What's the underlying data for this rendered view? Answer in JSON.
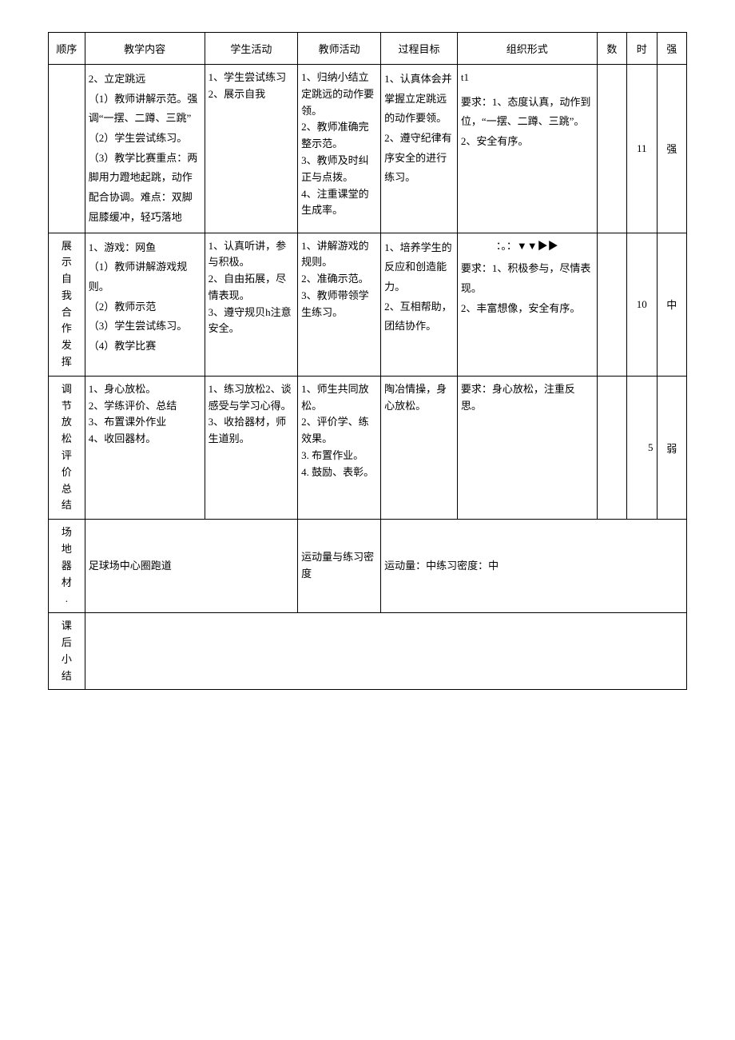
{
  "headers": {
    "seq": "顺序",
    "content": "教学内容",
    "student": "学生活动",
    "teacher": "教师活动",
    "goal": "过程目标",
    "org": "组织形式",
    "num": "数",
    "time": "时",
    "int": "强"
  },
  "row1": {
    "content": "2、立定跳远\n（1）教师讲解示范。强调“一摆、二蹲、三跳”\n（2）学生尝试练习。\n（3）教学比赛重点：两脚用力蹬地起跳，动作配合协调。难点：双脚屈膝缓冲，轻巧落地",
    "student": "1、学生尝试练习\n2、展示自我",
    "teacher": "1、归纳小结立定跳远的动作要领。\n2、教师准确完整示范。\n3、教师及时纠正与点拨。\n4、注重课堂的生成率。",
    "goal": "1、认真体会并掌握立定跳远的动作要领。\n2、遵守纪律有序安全的进行练习。",
    "org_marker": "t1",
    "org_req": "要求：1、态度认真，动作到位，“一摆、二蹲、三跳”。\n2、安全有序。",
    "time": "11",
    "int": "强"
  },
  "row2": {
    "seq": "展示自我合作发挥",
    "content": "1、游戏：网鱼\n（1）教师讲解游戏规则。\n（2）教师示范\n（3）学生尝试练习。\n（4）教学比赛",
    "student": "1、认真听讲，参与积极。\n2、自由拓展，尽情表现。\n3、遵守规贝h注意安全。",
    "teacher": "1、讲解游戏的规则。\n2、准确示范。\n3、教师带领学生练习。",
    "goal": "1、培养学生的反应和创造能力。\n2、互相帮助，团结协作。",
    "org_marker": "：。：▼▼▶▶",
    "org_req": "要求：1、积极参与，尽情表现。\n2、丰富想像，安全有序。",
    "time": "10",
    "int": "中"
  },
  "row3": {
    "seq": "调节放松评价总结",
    "content": "1、身心放松。\n2、学练评价、总结\n3、布置课外作业\n4、收回器材。",
    "student": "1、练习放松2、谈感受与学习心得。\n3、收拾器材，师生道别。",
    "teacher": "1、师生共同放松。\n2、评价学、练效果。\n3. 布置作业。\n4. 鼓励、表彰。",
    "goal": "陶冶情操，身心放松。",
    "org_req": "要求：身心放松，注重反思。",
    "time": "5",
    "int": "弱"
  },
  "row4": {
    "label": "场地器材.",
    "value": "足球场中心圈跑道",
    "label2": "运动量与练习密度",
    "value2": "运动量：中练习密度：中"
  },
  "row5": {
    "label": "课后小结"
  },
  "colors": {
    "border": "#000000",
    "background": "#ffffff",
    "text": "#000000"
  },
  "typography": {
    "font_family": "SimSun",
    "base_fontsize": 13
  }
}
